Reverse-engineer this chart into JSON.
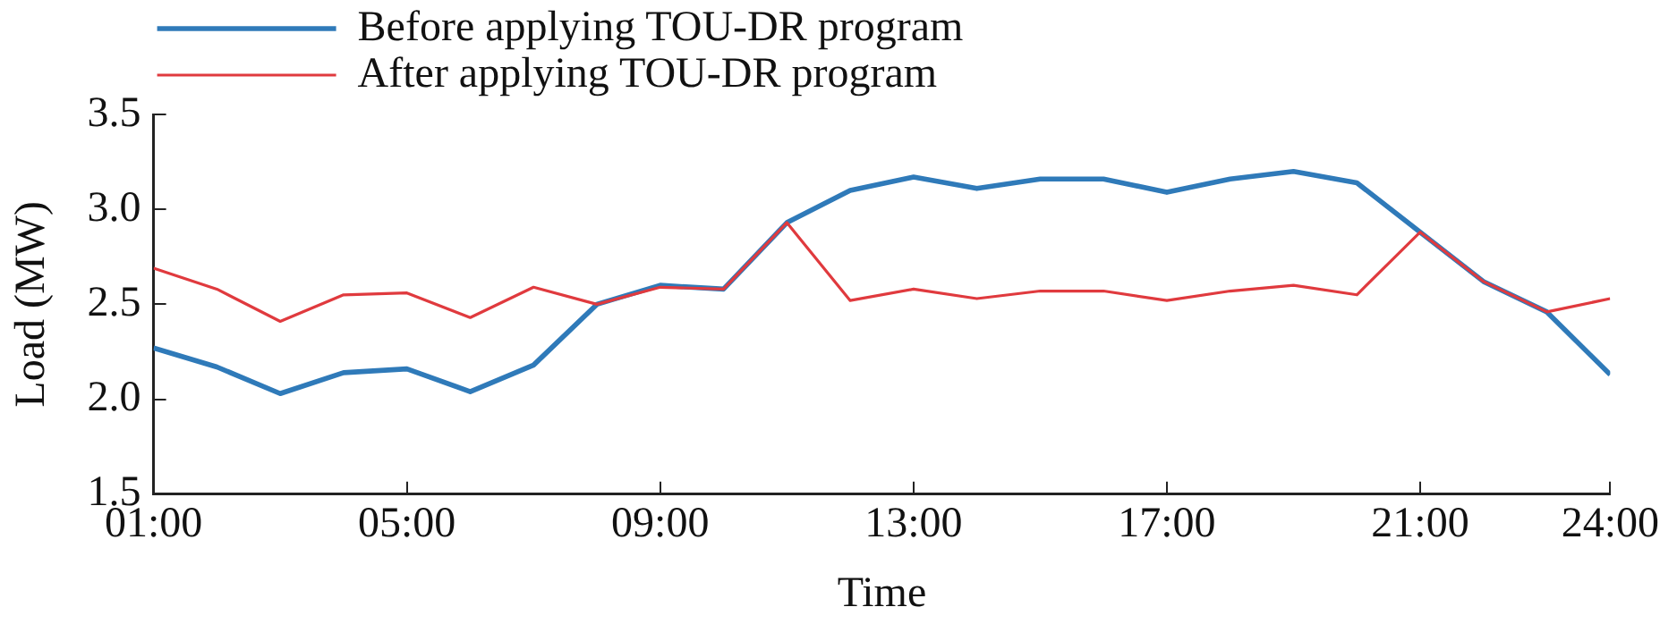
{
  "chart_data": {
    "type": "line",
    "xlabel": "Time",
    "ylabel": "Load (MW)",
    "x": [
      1,
      2,
      3,
      4,
      5,
      6,
      7,
      8,
      9,
      10,
      11,
      12,
      13,
      14,
      15,
      16,
      17,
      18,
      19,
      20,
      21,
      22,
      23,
      24
    ],
    "series": [
      {
        "name": "Before applying TOU-DR program",
        "color": "#2f7ab9",
        "values": [
          2.27,
          2.17,
          2.03,
          2.14,
          2.16,
          2.04,
          2.18,
          2.5,
          2.6,
          2.58,
          2.93,
          3.1,
          3.17,
          3.11,
          3.16,
          3.16,
          3.09,
          3.16,
          3.2,
          3.14,
          2.88,
          2.62,
          2.46,
          2.13
        ]
      },
      {
        "name": "After applying TOU-DR program",
        "color": "#e03a3e",
        "values": [
          2.69,
          2.58,
          2.41,
          2.55,
          2.56,
          2.43,
          2.59,
          2.5,
          2.59,
          2.58,
          2.93,
          2.52,
          2.58,
          2.53,
          2.57,
          2.57,
          2.52,
          2.57,
          2.6,
          2.55,
          2.88,
          2.62,
          2.46,
          2.53
        ]
      }
    ],
    "xlim": [
      1,
      24
    ],
    "xticks": [
      {
        "value": 1,
        "label": "01:00"
      },
      {
        "value": 5,
        "label": "05:00"
      },
      {
        "value": 9,
        "label": "09:00"
      },
      {
        "value": 13,
        "label": "13:00"
      },
      {
        "value": 17,
        "label": "17:00"
      },
      {
        "value": 21,
        "label": "21:00"
      },
      {
        "value": 24,
        "label": "24:00"
      }
    ],
    "ylim": [
      1.5,
      3.5
    ],
    "yticks": [
      1.5,
      {
        "value": 2,
        "label": "2.0"
      },
      2.5,
      {
        "value": 3,
        "label": "3.0"
      },
      3.5
    ],
    "grid": false,
    "legend": "top left",
    "marker": "none",
    "line_style": "solid"
  }
}
